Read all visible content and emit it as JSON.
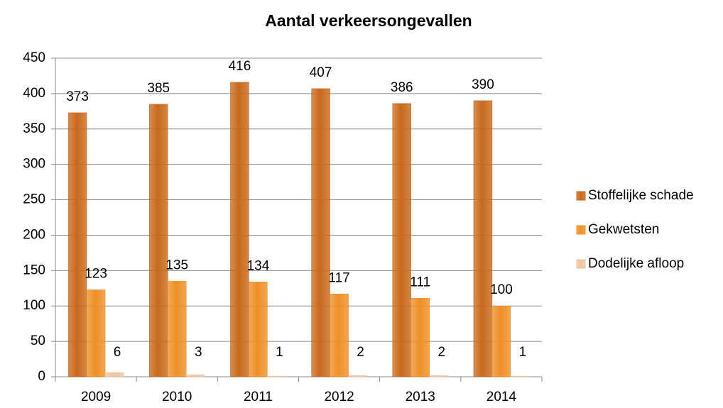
{
  "chart_data": {
    "type": "bar",
    "title": "Aantal verkeersongevallen",
    "categories": [
      "2009",
      "2010",
      "2011",
      "2012",
      "2013",
      "2014"
    ],
    "series": [
      {
        "name": "Stoffelijke schade",
        "color": "#c8691c",
        "values": [
          373,
          385,
          416,
          407,
          386,
          390
        ]
      },
      {
        "name": "Gekwetsten",
        "color": "#ee8f26",
        "values": [
          123,
          135,
          134,
          117,
          111,
          100
        ]
      },
      {
        "name": "Dodelijke afloop",
        "color": "#f0c4a0",
        "values": [
          6,
          3,
          1,
          2,
          2,
          1
        ]
      }
    ],
    "ylim": [
      0,
      450
    ],
    "yticks": [
      0,
      50,
      100,
      150,
      200,
      250,
      300,
      350,
      400,
      450
    ],
    "grid": true,
    "legend": "right"
  }
}
